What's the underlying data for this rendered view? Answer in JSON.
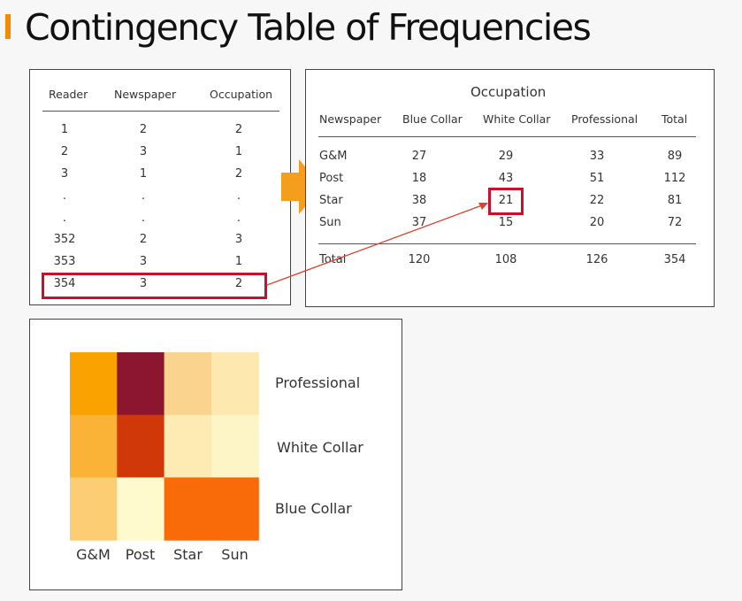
{
  "slide": {
    "title": "Contingency Table of Frequencies"
  },
  "raw_table": {
    "headers": [
      "Reader",
      "Newspaper",
      "Occupation"
    ],
    "rows": [
      [
        "1",
        "2",
        "2"
      ],
      [
        "2",
        "3",
        "1"
      ],
      [
        "3",
        "1",
        "2"
      ],
      [
        ".",
        ".",
        "."
      ],
      [
        ".",
        ".",
        "."
      ],
      [
        "352",
        "2",
        "3"
      ],
      [
        "353",
        "3",
        "1"
      ],
      [
        "354",
        "3",
        "2"
      ]
    ]
  },
  "contingency_table": {
    "group_header": "Occupation",
    "headers": [
      "Newspaper",
      "Blue Collar",
      "White Collar",
      "Professional",
      "Total"
    ],
    "rows": [
      [
        "G&M",
        "27",
        "29",
        "33",
        "89"
      ],
      [
        "Post",
        "18",
        "43",
        "51",
        "112"
      ],
      [
        "Star",
        "38",
        "21",
        "22",
        "81"
      ],
      [
        "Sun",
        "37",
        "15",
        "20",
        "72"
      ]
    ],
    "total_row": [
      "Total",
      "120",
      "108",
      "126",
      "354"
    ]
  },
  "chart_data": {
    "type": "heatmap",
    "x": [
      "G&M",
      "Post",
      "Star",
      "Sun"
    ],
    "y": [
      "Professional",
      "White Collar",
      "Blue Collar"
    ],
    "values": [
      [
        33,
        51,
        22,
        20
      ],
      [
        29,
        43,
        21,
        15
      ],
      [
        27,
        18,
        38,
        37
      ]
    ],
    "colors": [
      [
        "#f9a200",
        "#8c1530",
        "#fad38f",
        "#fde8b0"
      ],
      [
        "#fab237",
        "#d0380a",
        "#fdebb3",
        "#fef5c6"
      ],
      [
        "#fccd73",
        "#fffacd",
        "#f96b08",
        "#f96b08"
      ]
    ]
  },
  "colors": {
    "accent": "#f28c00",
    "highlight": "#c8102e"
  }
}
